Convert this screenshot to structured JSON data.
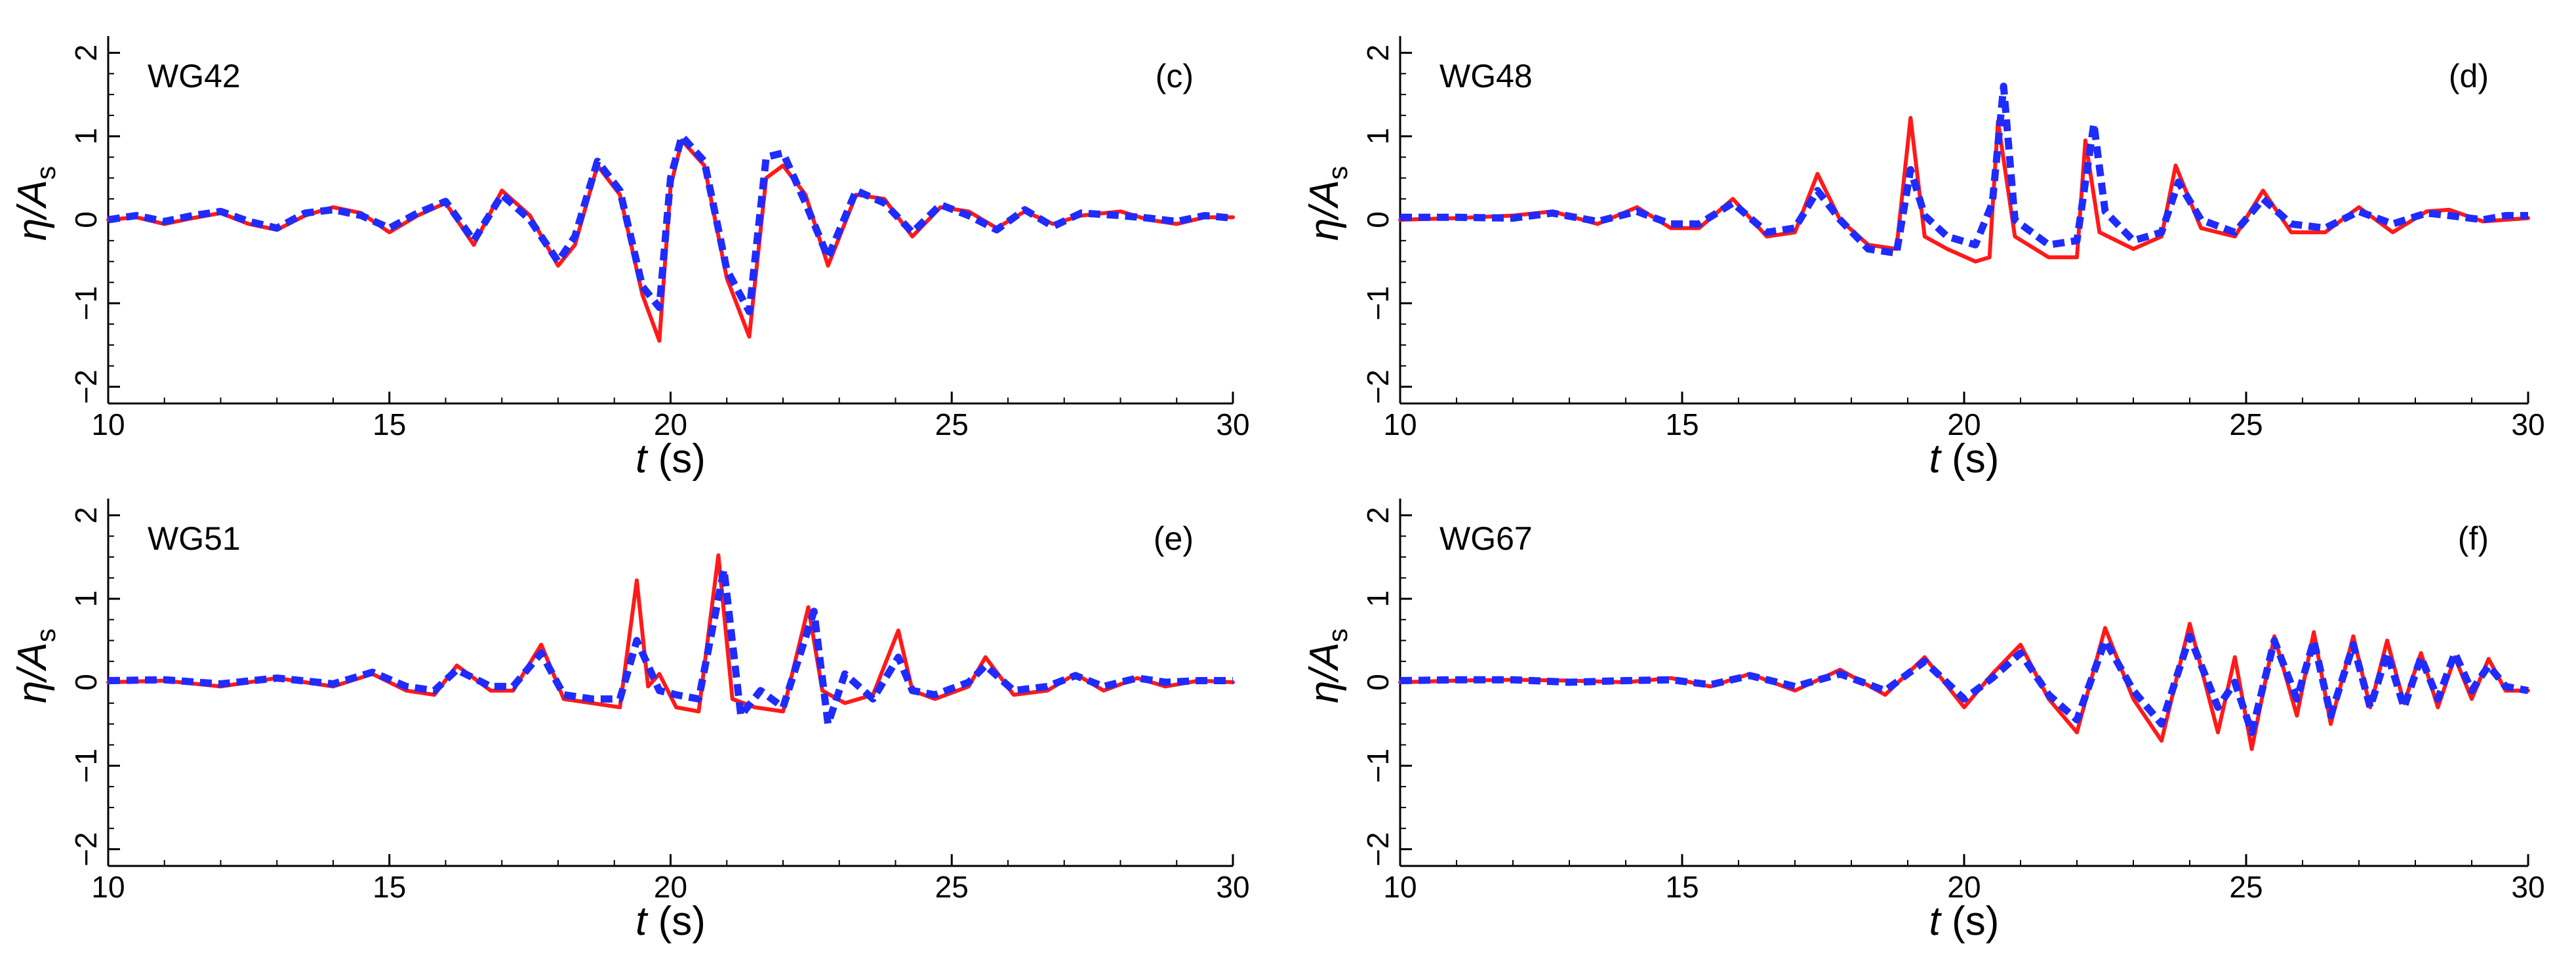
{
  "chart_data": [
    {
      "type": "line",
      "gauge_label": "WG42",
      "panel_label": "(c)",
      "xlabel": {
        "var": "t",
        "unit": "(s)"
      },
      "ylabel": {
        "var": "η/A",
        "sub": "s"
      },
      "xlim": [
        10,
        30
      ],
      "ylim": [
        -2.2,
        2.2
      ],
      "xticks": [
        10,
        15,
        20,
        25,
        30
      ],
      "yticks": [
        -2,
        -1,
        0,
        1,
        2
      ],
      "series": [
        {
          "name": "red solid",
          "color": "#ff1a1a",
          "style": "solid",
          "x": [
            10,
            10.5,
            11,
            11.5,
            12,
            12.5,
            13,
            13.5,
            14,
            14.5,
            15,
            15.5,
            16,
            16.5,
            17,
            17.5,
            18,
            18.3,
            18.7,
            19.1,
            19.5,
            19.8,
            20,
            20.2,
            20.6,
            21,
            21.4,
            21.7,
            22,
            22.4,
            22.8,
            23.3,
            23.8,
            24.3,
            24.8,
            25.3,
            25.8,
            26.3,
            26.8,
            27.3,
            28,
            28.5,
            29,
            29.5,
            30
          ],
          "y": [
            0,
            0.03,
            -0.05,
            0.02,
            0.08,
            -0.05,
            -0.12,
            0.05,
            0.15,
            0.08,
            -0.15,
            0.05,
            0.2,
            -0.3,
            0.35,
            0.05,
            -0.55,
            -0.3,
            0.65,
            0.3,
            -0.9,
            -1.45,
            0.4,
            0.95,
            0.65,
            -0.7,
            -1.4,
            0.5,
            0.65,
            0.3,
            -0.55,
            0.3,
            0.25,
            -0.2,
            0.15,
            0.1,
            -0.1,
            0.1,
            -0.05,
            0.05,
            0.1,
            0,
            -0.05,
            0.03,
            0.03
          ]
        },
        {
          "name": "blue dashed",
          "color": "#1f2bff",
          "style": "dashed",
          "x": [
            10,
            10.5,
            11,
            11.5,
            12,
            12.5,
            13,
            13.5,
            14,
            14.5,
            15,
            15.5,
            16,
            16.5,
            17,
            17.5,
            18,
            18.3,
            18.7,
            19.1,
            19.5,
            19.8,
            20,
            20.2,
            20.6,
            21,
            21.4,
            21.7,
            22,
            22.4,
            22.8,
            23.3,
            23.8,
            24.3,
            24.8,
            25.3,
            25.8,
            26.3,
            26.8,
            27.3,
            28,
            28.5,
            29,
            29.5,
            30
          ],
          "y": [
            0,
            0.05,
            -0.02,
            0.05,
            0.1,
            -0.02,
            -0.1,
            0.08,
            0.12,
            0.05,
            -0.1,
            0.08,
            0.22,
            -0.25,
            0.3,
            0,
            -0.5,
            -0.2,
            0.7,
            0.35,
            -0.8,
            -1.05,
            0.5,
            1.0,
            0.7,
            -0.6,
            -1.1,
            0.75,
            0.8,
            0.2,
            -0.45,
            0.35,
            0.2,
            -0.15,
            0.18,
            0.05,
            -0.12,
            0.12,
            -0.08,
            0.08,
            0.05,
            0.02,
            -0.02,
            0.05,
            0.02
          ]
        }
      ]
    },
    {
      "type": "line",
      "gauge_label": "WG48",
      "panel_label": "(d)",
      "xlabel": {
        "var": "t",
        "unit": "(s)"
      },
      "ylabel": {
        "var": "η/A",
        "sub": "s"
      },
      "xlim": [
        10,
        30
      ],
      "ylim": [
        -2.2,
        2.2
      ],
      "xticks": [
        10,
        15,
        20,
        25,
        30
      ],
      "yticks": [
        -2,
        -1,
        0,
        1,
        2
      ],
      "series": [
        {
          "name": "red solid",
          "color": "#ff1a1a",
          "style": "solid",
          "x": [
            10,
            11,
            12,
            12.7,
            13.5,
            14.2,
            14.8,
            15.3,
            15.9,
            16.5,
            17,
            17.4,
            17.8,
            18.3,
            18.8,
            19.05,
            19.3,
            19.7,
            20.2,
            20.45,
            20.6,
            20.9,
            21.5,
            22.0,
            22.15,
            22.4,
            23.0,
            23.5,
            23.75,
            24.2,
            24.8,
            25.3,
            25.8,
            26.4,
            27.0,
            27.6,
            28.2,
            28.6,
            29.2,
            29.6,
            30
          ],
          "y": [
            0,
            0.02,
            0.05,
            0.1,
            -0.05,
            0.15,
            -0.1,
            -0.1,
            0.25,
            -0.2,
            -0.15,
            0.55,
            0,
            -0.3,
            -0.35,
            1.22,
            -0.2,
            -0.35,
            -0.5,
            -0.45,
            1.18,
            -0.2,
            -0.45,
            -0.45,
            0.95,
            -0.15,
            -0.35,
            -0.2,
            0.65,
            -0.1,
            -0.2,
            0.35,
            -0.15,
            -0.15,
            0.15,
            -0.15,
            0.1,
            0.12,
            -0.02,
            0,
            0.02
          ]
        },
        {
          "name": "blue dashed",
          "color": "#1f2bff",
          "style": "dashed",
          "x": [
            10,
            11,
            12,
            12.7,
            13.5,
            14.2,
            14.8,
            15.3,
            15.9,
            16.5,
            17,
            17.4,
            17.8,
            18.3,
            18.8,
            19.05,
            19.3,
            19.7,
            20.2,
            20.5,
            20.7,
            20.9,
            21.5,
            22.0,
            22.3,
            22.5,
            23.0,
            23.5,
            23.8,
            24.2,
            24.8,
            25.3,
            25.8,
            26.4,
            27.0,
            27.6,
            28.2,
            28.6,
            29.2,
            29.6,
            30
          ],
          "y": [
            0.03,
            0.03,
            0.02,
            0.08,
            -0.02,
            0.1,
            -0.05,
            -0.05,
            0.2,
            -0.15,
            -0.1,
            0.35,
            0,
            -0.35,
            -0.4,
            0.6,
            0.05,
            -0.2,
            -0.3,
            0.2,
            1.6,
            0.0,
            -0.3,
            -0.25,
            1.15,
            0.1,
            -0.25,
            -0.15,
            0.45,
            0.0,
            -0.15,
            0.25,
            -0.05,
            -0.1,
            0.1,
            -0.05,
            0.08,
            0.05,
            0,
            0.05,
            0.05
          ]
        }
      ]
    },
    {
      "type": "line",
      "gauge_label": "WG51",
      "panel_label": "(e)",
      "xlabel": {
        "var": "t",
        "unit": "(s)"
      },
      "ylabel": {
        "var": "η/A",
        "sub": "s"
      },
      "xlim": [
        10,
        30
      ],
      "ylim": [
        -2.2,
        2.2
      ],
      "xticks": [
        10,
        15,
        20,
        25,
        30
      ],
      "yticks": [
        -2,
        -1,
        0,
        1,
        2
      ],
      "series": [
        {
          "name": "red solid",
          "color": "#ff1a1a",
          "style": "solid",
          "x": [
            10,
            11,
            12,
            13,
            14,
            14.7,
            15.3,
            15.8,
            16.2,
            16.8,
            17.2,
            17.7,
            18.1,
            18.6,
            19.1,
            19.4,
            19.6,
            19.8,
            20.1,
            20.5,
            20.85,
            21.1,
            21.5,
            22.0,
            22.45,
            22.7,
            23.1,
            23.6,
            24.05,
            24.3,
            24.7,
            25.3,
            25.6,
            26.1,
            26.7,
            27.2,
            27.7,
            28.3,
            28.8,
            29.4,
            30
          ],
          "y": [
            0,
            0.02,
            -0.05,
            0.05,
            -0.05,
            0.1,
            -0.1,
            -0.15,
            0.2,
            -0.1,
            -0.1,
            0.45,
            -0.2,
            -0.25,
            -0.3,
            1.22,
            -0.05,
            0.1,
            -0.3,
            -0.35,
            1.52,
            -0.2,
            -0.3,
            -0.35,
            0.9,
            -0.1,
            -0.25,
            -0.15,
            0.62,
            -0.1,
            -0.2,
            -0.05,
            0.3,
            -0.15,
            -0.1,
            0.1,
            -0.1,
            0.05,
            -0.05,
            0.02,
            0
          ]
        },
        {
          "name": "blue dashed",
          "color": "#1f2bff",
          "style": "dashed",
          "x": [
            10,
            11,
            12,
            13,
            14,
            14.7,
            15.3,
            15.8,
            16.2,
            16.8,
            17.2,
            17.7,
            18.1,
            18.6,
            19.1,
            19.4,
            19.6,
            19.8,
            20.1,
            20.5,
            20.95,
            21.25,
            21.6,
            22.0,
            22.55,
            22.8,
            23.1,
            23.6,
            24.05,
            24.3,
            24.7,
            25.3,
            25.6,
            26.1,
            26.7,
            27.2,
            27.7,
            28.3,
            28.8,
            29.4,
            30
          ],
          "y": [
            0.02,
            0.03,
            -0.02,
            0.05,
            -0.02,
            0.12,
            -0.05,
            -0.1,
            0.15,
            -0.05,
            -0.05,
            0.35,
            -0.15,
            -0.2,
            -0.2,
            0.5,
            0.2,
            -0.1,
            -0.15,
            -0.2,
            1.35,
            -0.4,
            -0.1,
            -0.3,
            0.85,
            -0.5,
            0.1,
            -0.2,
            0.3,
            -0.1,
            -0.15,
            0,
            0.2,
            -0.1,
            -0.05,
            0.08,
            -0.05,
            0.05,
            0,
            0.02,
            0.02
          ]
        }
      ]
    },
    {
      "type": "line",
      "gauge_label": "WG67",
      "panel_label": "(f)",
      "xlabel": {
        "var": "t",
        "unit": "(s)"
      },
      "ylabel": {
        "var": "η/A",
        "sub": "s"
      },
      "xlim": [
        10,
        30
      ],
      "ylim": [
        -2.2,
        2.2
      ],
      "xticks": [
        10,
        15,
        20,
        25,
        30
      ],
      "yticks": [
        -2,
        -1,
        0,
        1,
        2
      ],
      "series": [
        {
          "name": "red solid",
          "color": "#ff1a1a",
          "style": "solid",
          "x": [
            10,
            11,
            12,
            13,
            14,
            14.8,
            15.5,
            16.2,
            17,
            17.8,
            18.6,
            19.3,
            20,
            20.5,
            21,
            21.5,
            22,
            22.5,
            23,
            23.5,
            24,
            24.5,
            24.8,
            25.1,
            25.5,
            25.9,
            26.2,
            26.5,
            26.9,
            27.2,
            27.5,
            27.8,
            28.1,
            28.4,
            28.7,
            29,
            29.3,
            29.6,
            30
          ],
          "y": [
            0,
            0.02,
            0.03,
            0.02,
            0,
            0.05,
            -0.05,
            0.1,
            -0.1,
            0.15,
            -0.15,
            0.3,
            -0.3,
            0.1,
            0.45,
            -0.2,
            -0.6,
            0.65,
            -0.2,
            -0.7,
            0.7,
            -0.6,
            0.3,
            -0.8,
            0.55,
            -0.4,
            0.6,
            -0.5,
            0.55,
            -0.3,
            0.5,
            -0.25,
            0.35,
            -0.3,
            0.3,
            -0.2,
            0.28,
            -0.1,
            -0.1
          ]
        },
        {
          "name": "blue dashed",
          "color": "#1f2bff",
          "style": "dashed",
          "x": [
            10,
            11,
            12,
            13,
            14,
            14.8,
            15.5,
            16.2,
            17,
            17.8,
            18.6,
            19.3,
            20,
            20.5,
            21,
            21.5,
            22,
            22.5,
            23,
            23.5,
            24,
            24.5,
            24.8,
            25.1,
            25.5,
            25.9,
            26.2,
            26.5,
            26.9,
            27.2,
            27.5,
            27.8,
            28.1,
            28.4,
            28.7,
            29,
            29.3,
            29.6,
            30
          ],
          "y": [
            0.02,
            0.03,
            0.03,
            0,
            0.02,
            0.03,
            -0.03,
            0.08,
            -0.05,
            0.1,
            -0.1,
            0.25,
            -0.2,
            0.05,
            0.35,
            -0.15,
            -0.45,
            0.5,
            -0.1,
            -0.5,
            0.55,
            -0.3,
            0,
            -0.6,
            0.5,
            -0.2,
            0.5,
            -0.4,
            0.45,
            -0.3,
            0.35,
            -0.3,
            0.3,
            -0.2,
            0.35,
            -0.1,
            0.2,
            -0.05,
            -0.1
          ]
        }
      ]
    }
  ]
}
